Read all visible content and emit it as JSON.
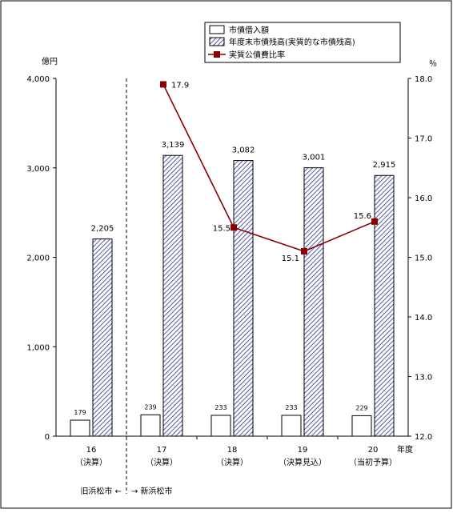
{
  "chart_data": {
    "type": "bar",
    "categories": [
      {
        "year": "16",
        "note": "（決算）"
      },
      {
        "year": "17",
        "note": "（決算）"
      },
      {
        "year": "18",
        "note": "（決算）"
      },
      {
        "year": "19",
        "note": "（決算見込）"
      },
      {
        "year": "20",
        "note": "（当初予算）"
      }
    ],
    "x_unit": "年度",
    "left_axis": {
      "unit": "億円",
      "ylim": [
        0,
        4000
      ],
      "ticks": [
        0,
        1000,
        2000,
        3000,
        4000
      ],
      "tick_labels": [
        "0",
        "1,000",
        "2,000",
        "3,000",
        "4,000"
      ]
    },
    "right_axis": {
      "unit": "％",
      "ylim": [
        12.0,
        18.0
      ],
      "ticks": [
        12,
        13,
        14,
        15,
        16,
        17,
        18
      ],
      "tick_labels": [
        "12.0",
        "13.0",
        "14.0",
        "15.0",
        "16.0",
        "17.0",
        "18.0"
      ]
    },
    "series": [
      {
        "name": "市債借入額",
        "kind": "bar",
        "axis": "left",
        "fill": "#ffffff",
        "values": [
          179,
          239,
          233,
          233,
          229
        ],
        "labels": [
          "179",
          "239",
          "233",
          "233",
          "229"
        ]
      },
      {
        "name": "年度末市債残高(実質的な市債残高)",
        "kind": "bar",
        "axis": "left",
        "fill": "hatch",
        "values": [
          2205,
          3139,
          3082,
          3001,
          2915
        ],
        "labels": [
          "2,205",
          "3,139",
          "3,082",
          "3,001",
          "2,915"
        ]
      },
      {
        "name": "実質公債費比率",
        "kind": "line",
        "axis": "right",
        "color": "#8b0000",
        "values": [
          null,
          17.9,
          15.5,
          15.1,
          15.6
        ],
        "labels": [
          null,
          "17.9",
          "15.5",
          "15.1",
          "15.6"
        ]
      }
    ],
    "divider_note": {
      "left": "旧浜松市 ←",
      "right": "→ 新浜松市"
    },
    "grid": false,
    "legend_position": "top-right"
  }
}
